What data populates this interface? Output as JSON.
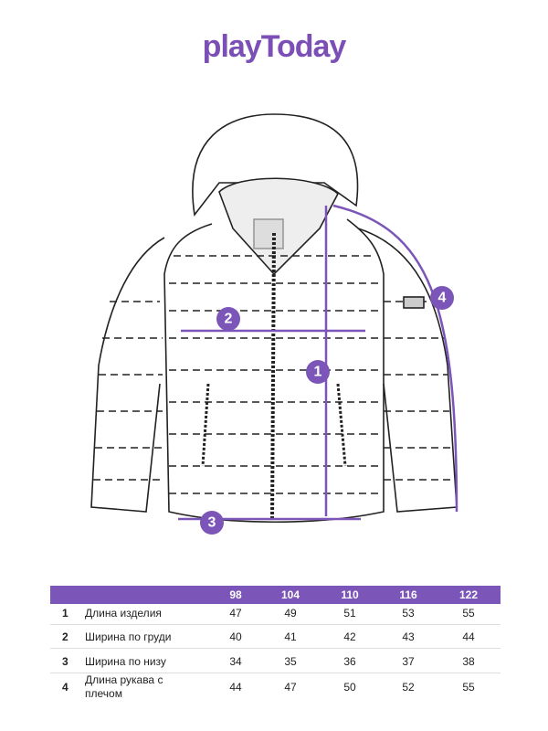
{
  "brand": "playToday",
  "markers": [
    "1",
    "2",
    "3",
    "4"
  ],
  "table": {
    "header": [
      98,
      104,
      110,
      116,
      122
    ],
    "rows": [
      {
        "number": 1,
        "label": "Длина изделия",
        "values": [
          47,
          49,
          51,
          53,
          55
        ]
      },
      {
        "number": 2,
        "label": "Ширина по груди",
        "values": [
          40,
          41,
          42,
          43,
          44
        ]
      },
      {
        "number": 3,
        "label": "Ширина по низу",
        "values": [
          34,
          35,
          36,
          37,
          38
        ]
      },
      {
        "number": 4,
        "label": "Длина рукава с плечом",
        "values": [
          44,
          47,
          50,
          52,
          55
        ]
      }
    ]
  }
}
